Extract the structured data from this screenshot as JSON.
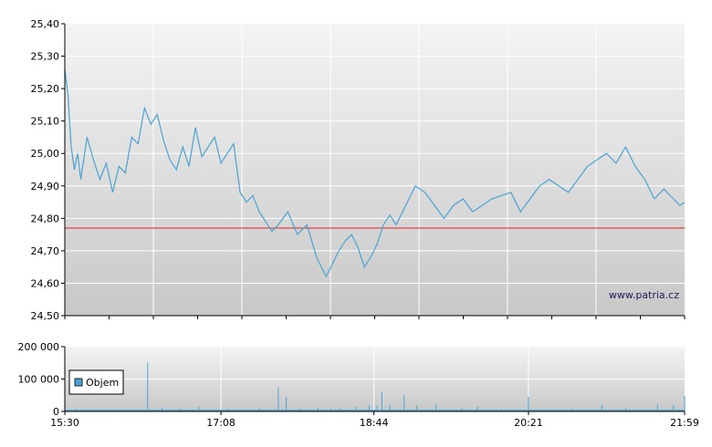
{
  "watermark": "www.patria.cz",
  "colors": {
    "price_line": "#4aa3d2",
    "reference_line": "#e02020",
    "volume_bar": "#4aa3d2",
    "grid": "#ffffff",
    "plot_top": "#f4f4f4",
    "plot_bottom": "#c8c8c8",
    "axis": "#000000"
  },
  "chart_data": [
    {
      "type": "line",
      "name": "price-chart",
      "ylim": [
        24.5,
        25.4
      ],
      "y_ticks": [
        "24,50",
        "24,60",
        "24,70",
        "24,80",
        "24,90",
        "25,00",
        "25,10",
        "25,20",
        "25,30",
        "25,40"
      ],
      "reference_value": 24.77,
      "x_range": [
        "15:30",
        "21:59"
      ],
      "series": [
        {
          "x": [
            "15:30",
            "15:32",
            "15:34",
            "15:36",
            "15:38",
            "15:40",
            "15:44",
            "15:48",
            "15:52",
            "15:56",
            "16:00",
            "16:04",
            "16:08",
            "16:12",
            "16:16",
            "16:20",
            "16:24",
            "16:28",
            "16:32",
            "16:36",
            "16:40",
            "16:44",
            "16:48",
            "16:52",
            "16:56",
            "17:00",
            "17:04",
            "17:08",
            "17:12",
            "17:16",
            "17:20",
            "17:24",
            "17:28",
            "17:32",
            "17:36",
            "17:40",
            "17:44",
            "17:50",
            "17:56",
            "18:02",
            "18:08",
            "18:14",
            "18:18",
            "18:22",
            "18:26",
            "18:30",
            "18:34",
            "18:38",
            "18:42",
            "18:46",
            "18:50",
            "18:54",
            "18:58",
            "19:02",
            "19:06",
            "19:10",
            "19:16",
            "19:22",
            "19:28",
            "19:34",
            "19:40",
            "19:46",
            "19:52",
            "19:58",
            "20:04",
            "20:10",
            "20:16",
            "20:22",
            "20:28",
            "20:34",
            "20:40",
            "20:46",
            "20:52",
            "20:58",
            "21:04",
            "21:10",
            "21:16",
            "21:22",
            "21:28",
            "21:34",
            "21:40",
            "21:46",
            "21:52",
            "21:56",
            "21:59"
          ],
          "y": [
            25.26,
            25.18,
            25.02,
            24.95,
            25.0,
            24.92,
            25.05,
            24.98,
            24.92,
            24.97,
            24.88,
            24.96,
            24.94,
            25.05,
            25.03,
            25.14,
            25.09,
            25.12,
            25.04,
            24.98,
            24.95,
            25.02,
            24.96,
            25.08,
            24.99,
            25.02,
            25.05,
            24.97,
            25.0,
            25.03,
            24.88,
            24.85,
            24.87,
            24.82,
            24.79,
            24.76,
            24.78,
            24.82,
            24.75,
            24.78,
            24.68,
            24.62,
            24.66,
            24.7,
            24.73,
            24.75,
            24.71,
            24.65,
            24.68,
            24.72,
            24.78,
            24.81,
            24.78,
            24.82,
            24.86,
            24.9,
            24.88,
            24.84,
            24.8,
            24.84,
            24.86,
            24.82,
            24.84,
            24.86,
            24.87,
            24.88,
            24.82,
            24.86,
            24.9,
            24.92,
            24.9,
            24.88,
            24.92,
            24.96,
            24.98,
            25.0,
            24.97,
            25.02,
            24.96,
            24.92,
            24.86,
            24.89,
            24.86,
            24.84,
            24.85
          ]
        }
      ]
    },
    {
      "type": "bar",
      "name": "volume-chart",
      "ylim": [
        0,
        200000
      ],
      "y_ticks": [
        "0",
        "100 000",
        "200 000"
      ],
      "x_ticks": [
        "15:30",
        "17:08",
        "18:44",
        "20:21",
        "21:59"
      ],
      "legend": {
        "label": "Objem",
        "placement": "left"
      },
      "series": [
        {
          "x": [
            "15:30",
            "15:37",
            "15:41",
            "15:50",
            "16:01",
            "16:15",
            "16:22",
            "16:31",
            "16:42",
            "16:54",
            "17:01",
            "17:12",
            "17:20",
            "17:32",
            "17:38",
            "17:44",
            "17:49",
            "17:58",
            "18:09",
            "18:17",
            "18:23",
            "18:33",
            "18:41",
            "18:46",
            "18:49",
            "18:54",
            "19:03",
            "19:11",
            "19:23",
            "19:39",
            "19:49",
            "20:04",
            "20:21",
            "20:31",
            "20:48",
            "21:07",
            "21:22",
            "21:42",
            "21:52",
            "21:59"
          ],
          "y": [
            15000,
            8000,
            6000,
            5000,
            7000,
            4000,
            150000,
            12000,
            9000,
            15000,
            6000,
            8000,
            5000,
            10000,
            6000,
            75000,
            45000,
            9000,
            12000,
            8000,
            10000,
            15000,
            20000,
            18000,
            62000,
            20000,
            50000,
            18000,
            22000,
            10000,
            15000,
            8000,
            45000,
            6000,
            8000,
            20000,
            12000,
            22000,
            20000,
            48000
          ]
        }
      ]
    }
  ]
}
